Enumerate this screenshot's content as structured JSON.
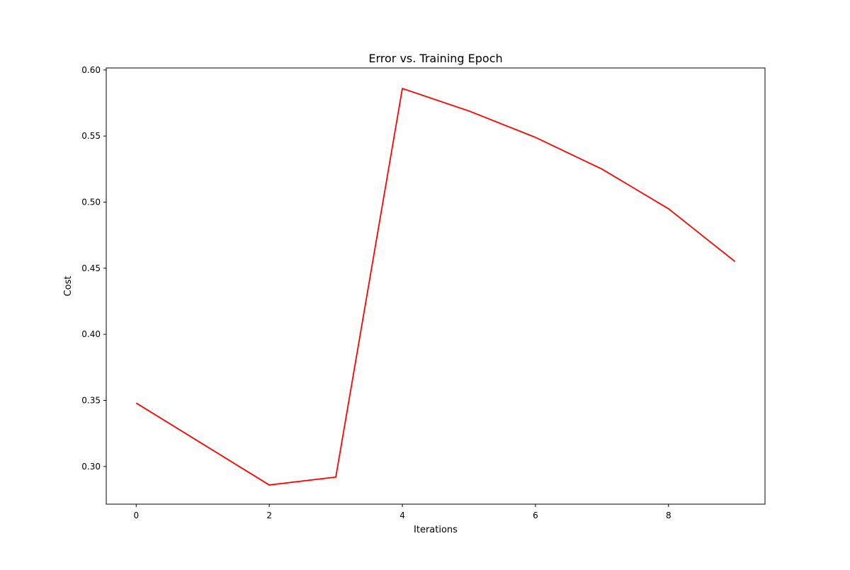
{
  "chart_data": {
    "type": "line",
    "title": "Error vs. Training Epoch",
    "xlabel": "Iterations",
    "ylabel": "Cost",
    "x": [
      0,
      1,
      2,
      3,
      4,
      5,
      6,
      7,
      8,
      9
    ],
    "series": [
      {
        "values": [
          0.348,
          0.317,
          0.286,
          0.292,
          0.586,
          0.569,
          0.549,
          0.525,
          0.495,
          0.455
        ],
        "color": "#ff0000"
      }
    ],
    "xlim": [
      -0.45,
      9.45
    ],
    "ylim": [
      0.2715,
      0.6015
    ],
    "xticks": [
      0,
      2,
      4,
      6,
      8
    ],
    "xtick_labels": [
      "0",
      "2",
      "4",
      "6",
      "8"
    ],
    "yticks": [
      0.3,
      0.35,
      0.4,
      0.45,
      0.5,
      0.55,
      0.6
    ],
    "ytick_labels": [
      "0.30",
      "0.35",
      "0.40",
      "0.45",
      "0.50",
      "0.55",
      "0.60"
    ],
    "grid": false,
    "legend": "none"
  }
}
